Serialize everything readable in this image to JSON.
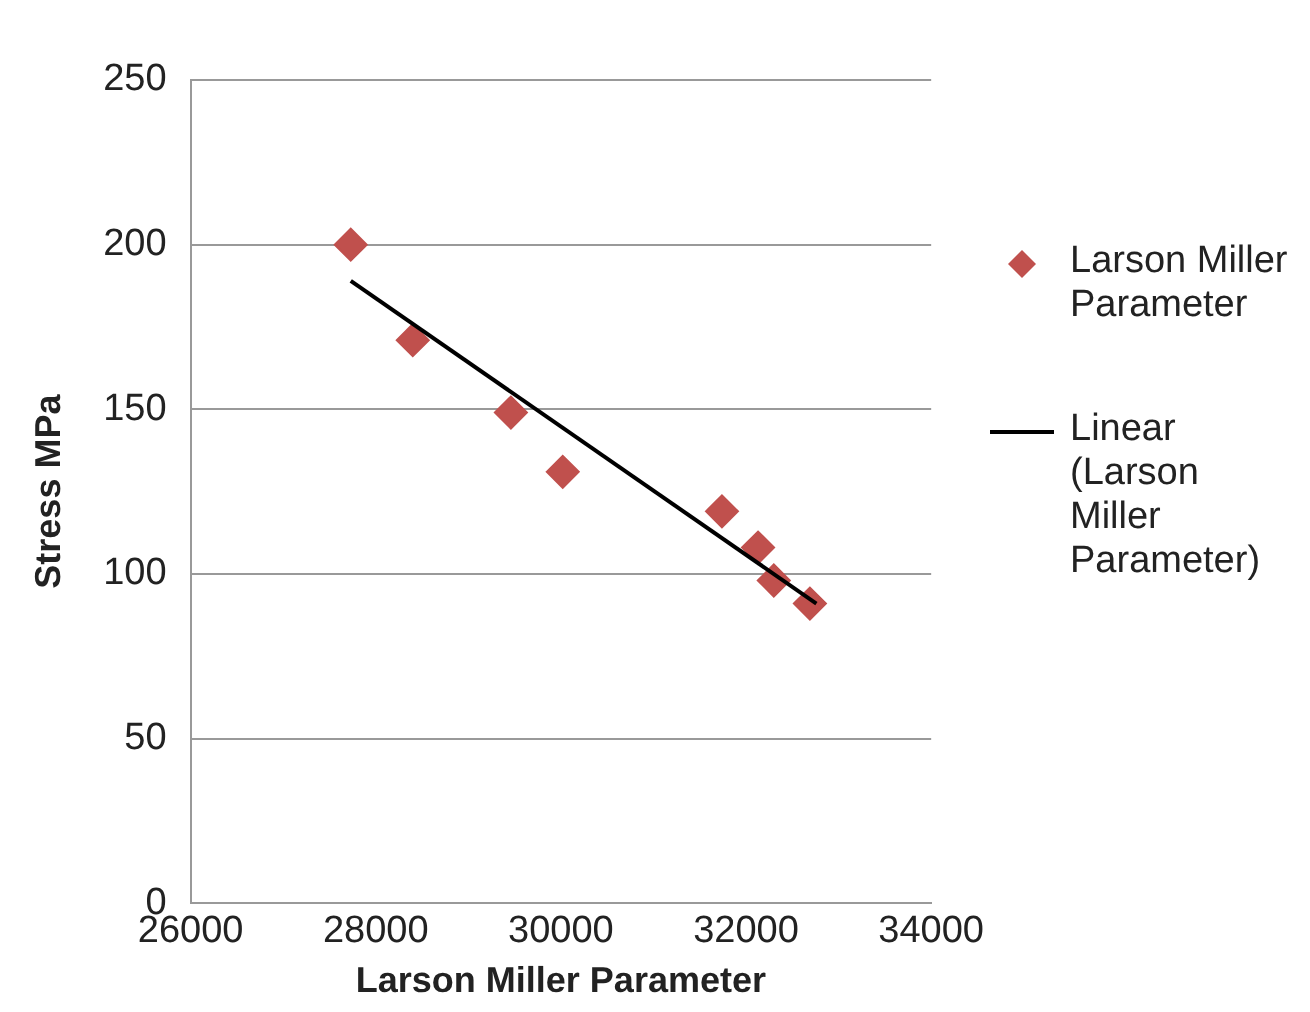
{
  "chart_data": {
    "type": "scatter",
    "xlabel": "Larson Miller Parameter",
    "ylabel": "Stress MPa",
    "xlim": [
      26000,
      34000
    ],
    "xticks": [
      26000,
      28000,
      30000,
      32000,
      34000
    ],
    "ylim": [
      0,
      250
    ],
    "yticks": [
      0,
      50,
      100,
      150,
      200,
      250
    ],
    "grid": "y",
    "legend": "right",
    "marker": "diamond",
    "series": [
      {
        "name": "Larson Miller Parameter",
        "color": "#c0504d",
        "x": [
          27730,
          28400,
          29460,
          30020,
          31740,
          32130,
          32300,
          32690
        ],
        "values": [
          200,
          171,
          149,
          131,
          119,
          108,
          98,
          91
        ]
      },
      {
        "name": "Linear (Larson Miller Parameter)",
        "type": "line",
        "marker": "none",
        "line_style": "solid",
        "color": "#000000",
        "x": [
          27730,
          32760
        ],
        "values": [
          189,
          91
        ]
      }
    ]
  }
}
